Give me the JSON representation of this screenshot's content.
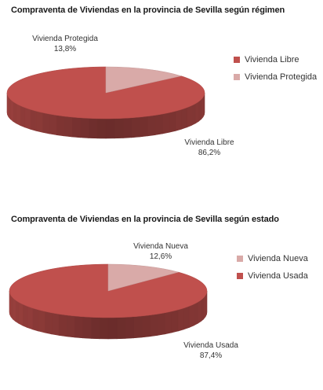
{
  "chart_data": [
    {
      "type": "pie",
      "title": "Compraventa de Viviendas en la provincia de Sevilla según régimen",
      "categories": [
        "Vivienda Libre",
        "Vivienda Protegida"
      ],
      "values": [
        86.2,
        13.8
      ],
      "value_labels": [
        "86,2%",
        "13,8%"
      ],
      "colors": [
        "#c0504d",
        "#d9aaa8"
      ],
      "legend": {
        "position": "right",
        "entries": [
          "Vivienda Libre",
          "Vivienda Protegida"
        ]
      }
    },
    {
      "type": "pie",
      "title": "Compraventa de Viviendas en la provincia de Sevilla según estado",
      "categories": [
        "Vivienda Nueva",
        "Vivienda Usada"
      ],
      "values": [
        12.6,
        87.4
      ],
      "value_labels": [
        "12,6%",
        "87,4%"
      ],
      "colors": [
        "#d9aaa8",
        "#c0504d"
      ],
      "legend": {
        "position": "right",
        "entries": [
          "Vivienda Nueva",
          "Vivienda Usada"
        ]
      }
    }
  ]
}
